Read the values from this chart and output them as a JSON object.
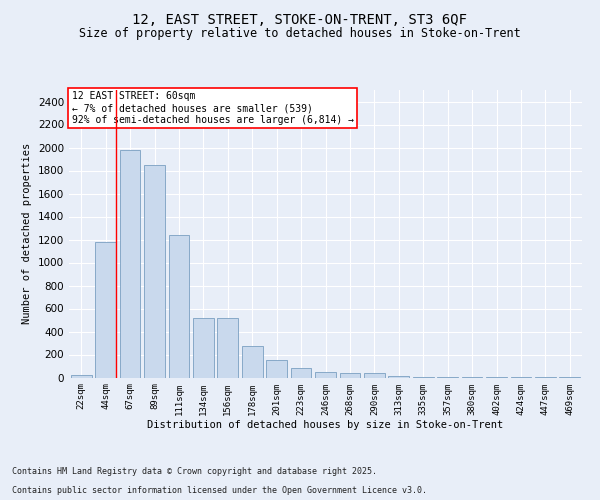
{
  "title1": "12, EAST STREET, STOKE-ON-TRENT, ST3 6QF",
  "title2": "Size of property relative to detached houses in Stoke-on-Trent",
  "xlabel": "Distribution of detached houses by size in Stoke-on-Trent",
  "ylabel": "Number of detached properties",
  "categories": [
    "22sqm",
    "44sqm",
    "67sqm",
    "89sqm",
    "111sqm",
    "134sqm",
    "156sqm",
    "178sqm",
    "201sqm",
    "223sqm",
    "246sqm",
    "268sqm",
    "290sqm",
    "313sqm",
    "335sqm",
    "357sqm",
    "380sqm",
    "402sqm",
    "424sqm",
    "447sqm",
    "469sqm"
  ],
  "values": [
    20,
    1175,
    1975,
    1850,
    1240,
    515,
    515,
    270,
    155,
    85,
    50,
    35,
    35,
    15,
    5,
    3,
    2,
    1,
    1,
    1,
    1
  ],
  "bar_color": "#c9d9ed",
  "bar_edge_color": "#7a9fc2",
  "vline_color": "red",
  "annotation_title": "12 EAST STREET: 60sqm",
  "annotation_line1": "← 7% of detached houses are smaller (539)",
  "annotation_line2": "92% of semi-detached houses are larger (6,814) →",
  "ylim": [
    0,
    2500
  ],
  "yticks": [
    0,
    200,
    400,
    600,
    800,
    1000,
    1200,
    1400,
    1600,
    1800,
    2000,
    2200,
    2400
  ],
  "footer1": "Contains HM Land Registry data © Crown copyright and database right 2025.",
  "footer2": "Contains public sector information licensed under the Open Government Licence v3.0.",
  "bg_color": "#e8eef8",
  "plot_bg_color": "#e8eef8"
}
